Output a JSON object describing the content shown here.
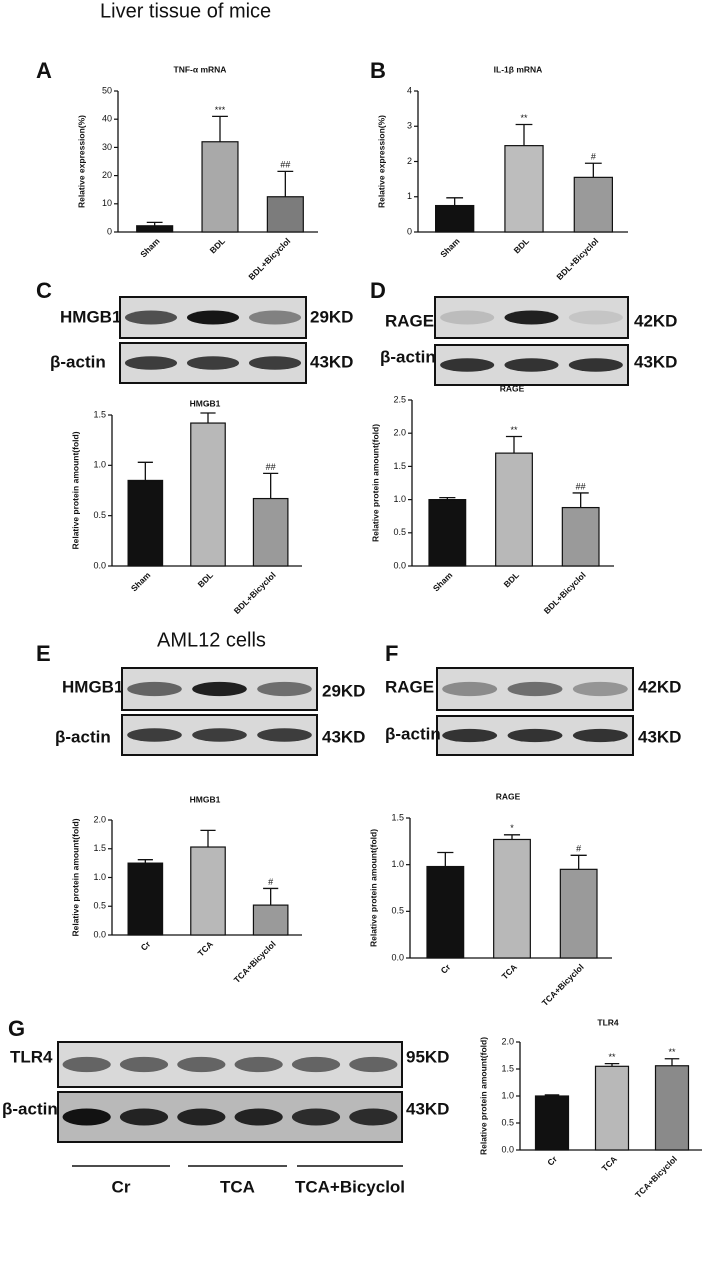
{
  "figure": {
    "headers": [
      "Liver tissue of mice",
      "AML12 cells"
    ],
    "panel_letters": [
      "A",
      "B",
      "C",
      "D",
      "E",
      "F",
      "G"
    ],
    "blots": [
      {
        "rows": [
          {
            "protein": "HMGB1",
            "size": "29KD"
          },
          {
            "protein": "β-actin",
            "size": "43KD"
          }
        ]
      },
      {
        "rows": [
          {
            "protein": "RAGE",
            "size": "42KD"
          },
          {
            "protein": "β-actin",
            "size": "43KD"
          }
        ]
      },
      {
        "rows": [
          {
            "protein": "HMGB1",
            "size": "29KD"
          },
          {
            "protein": "β-actin",
            "size": "43KD"
          }
        ]
      },
      {
        "rows": [
          {
            "protein": "RAGE",
            "size": "42KD"
          },
          {
            "protein": "β-actin",
            "size": "43KD"
          }
        ]
      },
      {
        "rows": [
          {
            "protein": "TLR4",
            "size": "95KD"
          },
          {
            "protein": "β-actin",
            "size": "43KD"
          }
        ],
        "lanes": [
          "Cr",
          "TCA",
          "TCA+Bicyclol"
        ]
      }
    ]
  },
  "chart_data": [
    {
      "type": "bar",
      "title": "TNF-α mRNA",
      "ylabel": "Relative expression(%)",
      "categories": [
        "Sham",
        "BDL",
        "BDL+Bicyclol"
      ],
      "values": [
        2.2,
        32,
        12.5
      ],
      "errors": [
        1.2,
        9,
        9
      ],
      "annotations": [
        null,
        "***",
        "##"
      ],
      "colors": [
        "#111111",
        "#a9a9a9",
        "#7c7c7c"
      ],
      "ylim": [
        0,
        50
      ],
      "yticks": [
        0,
        10,
        20,
        30,
        40,
        50
      ]
    },
    {
      "type": "bar",
      "title": "IL-1β mRNA",
      "ylabel": "Relative expression(%)",
      "categories": [
        "Sham",
        "BDL",
        "BDL+Bicyclol"
      ],
      "values": [
        0.75,
        2.45,
        1.55
      ],
      "errors": [
        0.22,
        0.6,
        0.4
      ],
      "annotations": [
        null,
        "**",
        "#"
      ],
      "colors": [
        "#111111",
        "#bdbdbd",
        "#9a9a9a"
      ],
      "ylim": [
        0,
        4
      ],
      "yticks": [
        0,
        1,
        2,
        3,
        4
      ]
    },
    {
      "type": "bar",
      "title": "HMGB1",
      "ylabel": "Relative protein amount(fold)",
      "categories": [
        "Sham",
        "BDL",
        "BDL+Bicyclol"
      ],
      "values": [
        0.85,
        1.42,
        0.67
      ],
      "errors": [
        0.18,
        0.1,
        0.25
      ],
      "annotations": [
        null,
        "*",
        "##"
      ],
      "colors": [
        "#111111",
        "#b8b8b8",
        "#9a9a9a"
      ],
      "ylim": [
        0,
        1.5
      ],
      "yticks": [
        {
          "value": 0,
          "label": "0.0"
        },
        0.5,
        {
          "value": 1,
          "label": "1.0"
        },
        1.5
      ]
    },
    {
      "type": "bar",
      "title": "RAGE",
      "ylabel": "Relative protein amount(fold)",
      "categories": [
        "Sham",
        "BDL",
        "BDL+Bicyclol"
      ],
      "values": [
        1.0,
        1.7,
        0.88
      ],
      "errors": [
        0.03,
        0.25,
        0.22
      ],
      "annotations": [
        null,
        "**",
        "##"
      ],
      "colors": [
        "#111111",
        "#b8b8b8",
        "#9a9a9a"
      ],
      "ylim": [
        0,
        2.5
      ],
      "yticks": [
        {
          "value": 0,
          "label": "0.0"
        },
        0.5,
        {
          "value": 1,
          "label": "1.0"
        },
        1.5,
        {
          "value": 2,
          "label": "2.0"
        },
        2.5
      ]
    },
    {
      "type": "bar",
      "title": "HMGB1",
      "ylabel": "Relative protein amount(fold)",
      "categories": [
        "Cr",
        "TCA",
        "TCA+Bicyclol"
      ],
      "values": [
        1.25,
        1.53,
        0.52
      ],
      "errors": [
        0.06,
        0.29,
        0.29
      ],
      "annotations": [
        null,
        null,
        "#"
      ],
      "colors": [
        "#111111",
        "#b8b8b8",
        "#9a9a9a"
      ],
      "ylim": [
        0,
        2
      ],
      "yticks": [
        {
          "value": 0,
          "label": "0.0"
        },
        0.5,
        {
          "value": 1,
          "label": "1.0"
        },
        1.5,
        {
          "value": 2,
          "label": "2.0"
        }
      ]
    },
    {
      "type": "bar",
      "title": "RAGE",
      "ylabel": "Relative protein amount(fold)",
      "categories": [
        "Cr",
        "TCA",
        "TCA+Bicyclol"
      ],
      "values": [
        0.98,
        1.27,
        0.95
      ],
      "errors": [
        0.15,
        0.05,
        0.15
      ],
      "annotations": [
        null,
        "*",
        "#"
      ],
      "colors": [
        "#111111",
        "#b8b8b8",
        "#9a9a9a"
      ],
      "ylim": [
        0,
        1.5
      ],
      "yticks": [
        {
          "value": 0,
          "label": "0.0"
        },
        0.5,
        {
          "value": 1,
          "label": "1.0"
        },
        1.5
      ]
    },
    {
      "type": "bar",
      "title": "TLR4",
      "ylabel": "Relative protein amount(fold)",
      "categories": [
        "Cr",
        "TCA",
        "TCA+Bicyclol"
      ],
      "values": [
        1.0,
        1.55,
        1.56
      ],
      "errors": [
        0.02,
        0.05,
        0.13
      ],
      "annotations": [
        null,
        "**",
        "**"
      ],
      "colors": [
        "#111111",
        "#b8b8b8",
        "#8a8a8a"
      ],
      "ylim": [
        0,
        2
      ],
      "yticks": [
        {
          "value": 0,
          "label": "0.0"
        },
        0.5,
        {
          "value": 1,
          "label": "1.0"
        },
        1.5,
        {
          "value": 2,
          "label": "2.0"
        }
      ]
    }
  ]
}
